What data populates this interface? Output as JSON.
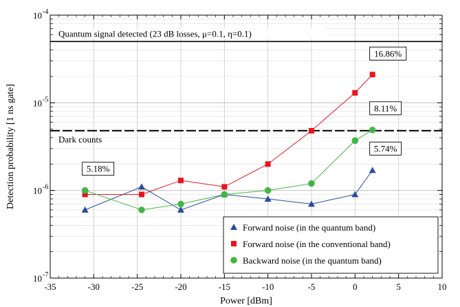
{
  "chart_data": {
    "type": "line",
    "xlabel": "Power [dBm]",
    "ylabel": "Detection probability [1 ns gate]",
    "xlim": [
      -35,
      10
    ],
    "ylim": [
      1e-07,
      0.0001
    ],
    "y_scale": "log",
    "x_ticks": [
      -35,
      -30,
      -25,
      -20,
      -15,
      -10,
      -5,
      0,
      5,
      10
    ],
    "x_tick_labels": [
      "-35",
      "-30",
      "-25",
      "-20",
      "-15",
      "-10",
      "-5",
      "0",
      "5",
      "10"
    ],
    "y_tick_labels": [
      {
        "base": "10",
        "exp": "-7",
        "value": 1e-07
      },
      {
        "base": "10",
        "exp": "-6",
        "value": 1e-06
      },
      {
        "base": "10",
        "exp": "-5",
        "value": 1e-05
      },
      {
        "base": "10",
        "exp": "-4",
        "value": 0.0001
      }
    ],
    "grid": true,
    "legend_position": "bottom-right",
    "series": [
      {
        "name": "Forward noise (in the quantum band)",
        "marker": "triangle",
        "color": "#2a4d9c",
        "x": [
          -31,
          -24.5,
          -20,
          -15,
          -10,
          -5,
          0,
          2
        ],
        "y": [
          6e-07,
          1.1e-06,
          6e-07,
          9e-07,
          8e-07,
          7e-07,
          9e-07,
          1.7e-06
        ]
      },
      {
        "name": "Forward noise (in the conventional band)",
        "marker": "square",
        "color": "#e8141c",
        "x": [
          -31,
          -24.5,
          -20,
          -15,
          -10,
          -5,
          0,
          2
        ],
        "y": [
          9e-07,
          9e-07,
          1.3e-06,
          1.1e-06,
          2e-06,
          4.8e-06,
          1.3e-05,
          2.1e-05
        ]
      },
      {
        "name": "Backward noise (in the quantum band)",
        "marker": "circle",
        "color": "#43b547",
        "x": [
          -31,
          -24.5,
          -20,
          -15,
          -10,
          -5,
          0,
          2
        ],
        "y": [
          1e-06,
          6e-07,
          7e-07,
          9e-07,
          1e-06,
          1.2e-06,
          3.7e-06,
          4.9e-06
        ]
      }
    ],
    "reference_lines": [
      {
        "label": "Quantum signal detected (23 dB losses, μ=0.1, η=0.1)",
        "y": 5e-05,
        "style": "solid"
      },
      {
        "label": "Dark counts",
        "y": 4.8e-06,
        "style": "dashed"
      }
    ],
    "annotations": [
      {
        "text": "16.86%",
        "x": 2,
        "y": 2.1e-05
      },
      {
        "text": "8.11%",
        "x": 2,
        "y": 4.9e-06
      },
      {
        "text": "5.74%",
        "x": 2,
        "y": 1.7e-06
      },
      {
        "text": "5.18%",
        "x": -31,
        "y": 1e-06
      }
    ]
  }
}
